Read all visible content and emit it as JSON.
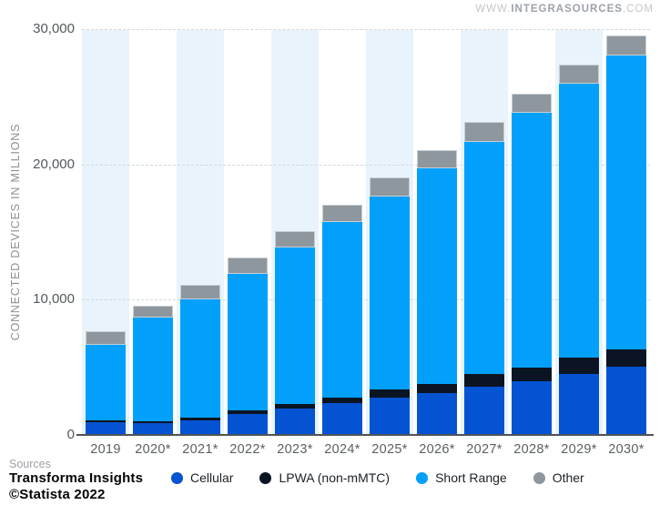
{
  "watermark": {
    "prefix": "WWW.",
    "name": "INTEGRASOURCES",
    "suffix": ".COM"
  },
  "y_axis": {
    "title": "CONNECTED DEVICES IN MILLIONS",
    "ticks": [
      {
        "label": "30,000",
        "value": 30000
      },
      {
        "label": "20,000",
        "value": 20000
      },
      {
        "label": "10,000",
        "value": 10000
      },
      {
        "label": "0",
        "value": 0
      }
    ]
  },
  "footer": {
    "sources_label": "Sources",
    "source_name": "Transforma Insights",
    "copyright": "©Statista 2022"
  },
  "chart_data": {
    "type": "bar",
    "stacked": true,
    "categories": [
      "2019",
      "2020*",
      "2021*",
      "2022*",
      "2023*",
      "2024*",
      "2025*",
      "2026*",
      "2027*",
      "2028*",
      "2029*",
      "2030*"
    ],
    "series": [
      {
        "name": "Cellular",
        "color": "#0453d2",
        "values": [
          920,
          900,
          1080,
          1550,
          1950,
          2370,
          2780,
          3080,
          3570,
          3950,
          4530,
          5030
        ]
      },
      {
        "name": "LPWA (non-mMTC)",
        "color": "#0b1422",
        "values": [
          140,
          140,
          200,
          250,
          340,
          400,
          570,
          710,
          940,
          1050,
          1170,
          1280
        ]
      },
      {
        "name": "Short Range",
        "color": "#02a0fb",
        "values": [
          5600,
          7650,
          8750,
          10090,
          11550,
          12940,
          14300,
          15920,
          17170,
          18790,
          20290,
          21730
        ]
      },
      {
        "name": "Other",
        "color": "#8f979e",
        "values": [
          990,
          890,
          1070,
          1250,
          1230,
          1280,
          1390,
          1350,
          1440,
          1460,
          1410,
          1460
        ]
      }
    ],
    "title": "",
    "xlabel": "",
    "ylabel": "CONNECTED DEVICES IN MILLIONS",
    "ylim": [
      0,
      30000
    ],
    "grid": "dashed horizontal lines at 10000/20000/30000",
    "legend_position": "bottom",
    "background_bands": "pale blue column bands behind every other category starting with 2019"
  },
  "colors": {
    "band": "#e9f3fb",
    "gridline": "#d2d7db",
    "axis_line": "#4e5358",
    "tick_text": "#53585c",
    "watermark_light": "#c3c7ca",
    "watermark_bold": "#9ca2a8"
  }
}
